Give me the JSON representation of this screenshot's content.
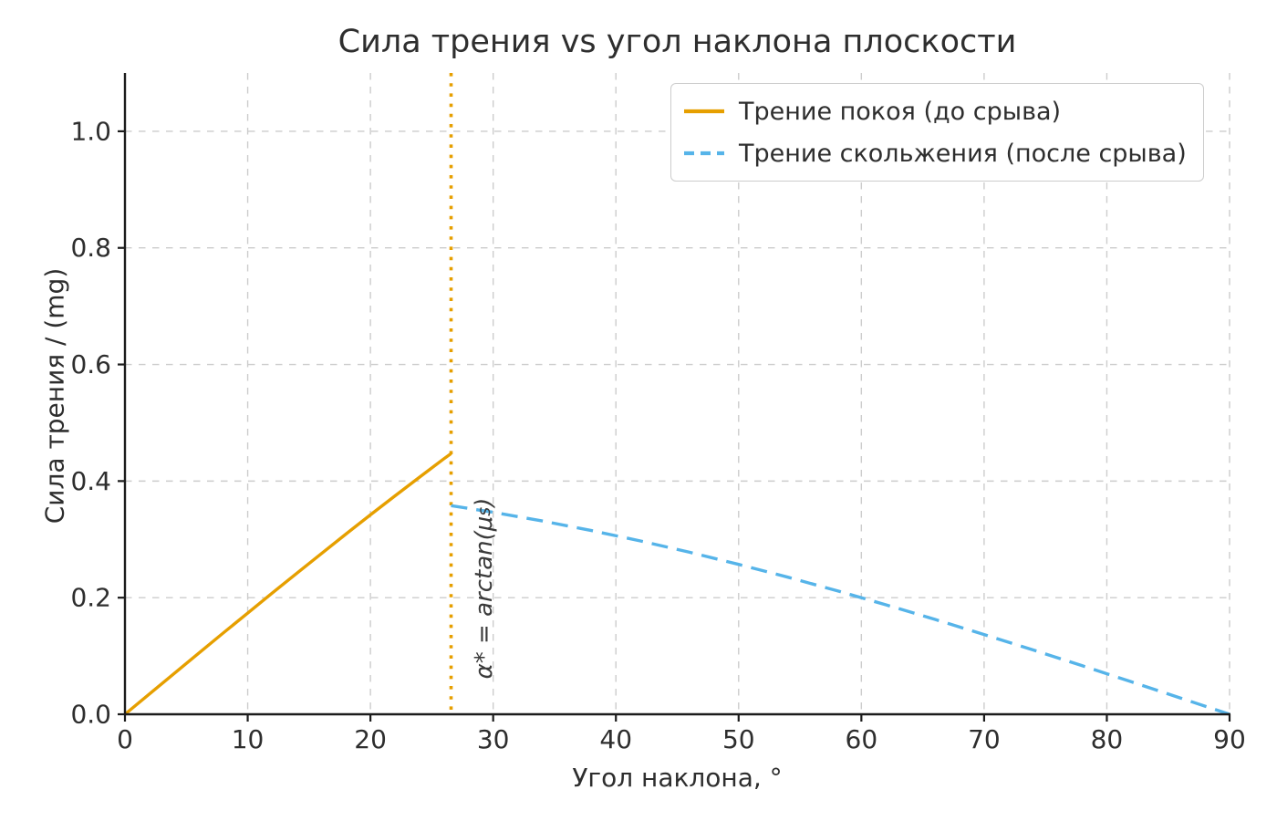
{
  "chart_data": {
    "type": "line",
    "title": "Сила трения vs угол наклона плоскости",
    "xlabel": "Угол наклона, °",
    "ylabel": "Сила трения / (mg)",
    "xlim": [
      0,
      90
    ],
    "ylim": [
      0,
      1.1
    ],
    "xticks": [
      0,
      10,
      20,
      30,
      40,
      50,
      60,
      70,
      80,
      90
    ],
    "xtick_labels": [
      "0",
      "10",
      "20",
      "30",
      "40",
      "50",
      "60",
      "70",
      "80",
      "90"
    ],
    "yticks": [
      0.0,
      0.2,
      0.4,
      0.6,
      0.8,
      1.0
    ],
    "ytick_labels": [
      "0.0",
      "0.2",
      "0.4",
      "0.6",
      "0.8",
      "1.0"
    ],
    "grid": true,
    "grid_color": "#cccccc",
    "legend_position": "upper right",
    "series": [
      {
        "name": "Трение покоя (до срыва)",
        "color": "#E69F00",
        "style": "solid",
        "x": [
          0,
          2,
          4,
          6,
          8,
          10,
          12,
          14,
          16,
          18,
          20,
          22,
          24,
          26,
          26.57
        ],
        "y": [
          0,
          0.0349,
          0.0698,
          0.1045,
          0.1392,
          0.1736,
          0.2079,
          0.2419,
          0.2756,
          0.309,
          0.342,
          0.3746,
          0.4067,
          0.4384,
          0.4472
        ]
      },
      {
        "name": "Трение скольжения (после срыва)",
        "color": "#56B4E9",
        "style": "dashed",
        "x": [
          26.57,
          30,
          34,
          38,
          42,
          46,
          50,
          54,
          58,
          62,
          66,
          70,
          74,
          78,
          82,
          86,
          90
        ],
        "y": [
          0.3578,
          0.3464,
          0.3316,
          0.3152,
          0.2973,
          0.2779,
          0.2571,
          0.2351,
          0.212,
          0.1878,
          0.1627,
          0.1368,
          0.1103,
          0.0832,
          0.0557,
          0.0279,
          0
        ]
      }
    ],
    "vline": {
      "x": 26.57,
      "color": "#E69F00",
      "style": "dotted",
      "label": "α* = arctan(μs)"
    }
  },
  "annotation": {
    "prefix": "α* = arctan(μ",
    "sub": "s",
    "suffix": ")"
  },
  "colors": {
    "static_line": "#E69F00",
    "kinetic_line": "#56B4E9",
    "grid": "#cccccc",
    "spine": "#1c1c1c",
    "text": "#2e2e2e"
  }
}
